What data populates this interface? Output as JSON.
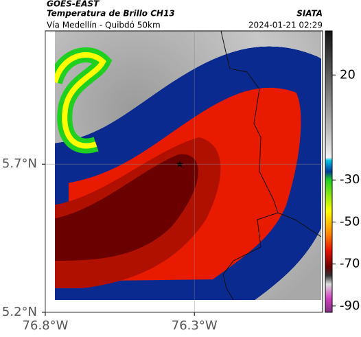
{
  "header": {
    "satellite": "GOES-EAST",
    "product": "Temperatura de Brillo CH13",
    "agency": "SIATA",
    "route": "Vía Medellín - Quibdó 50km",
    "timestamp": "2024-01-21 02:29"
  },
  "map": {
    "lonlim": [
      -76.8,
      -75.87
    ],
    "latlim": [
      5.2,
      6.15
    ],
    "xticks": [
      {
        "value": -76.8,
        "label": "76.8°W"
      },
      {
        "value": -76.3,
        "label": "76.3°W"
      }
    ],
    "yticks": [
      {
        "value": 5.2,
        "label": "5.2°N"
      },
      {
        "value": 5.7,
        "label": "5.7°N"
      }
    ],
    "grid": true
  },
  "colorbar": {
    "lim": [
      -93,
      41
    ],
    "ticks": [
      20,
      -30,
      -50,
      -70,
      -90
    ]
  }
}
